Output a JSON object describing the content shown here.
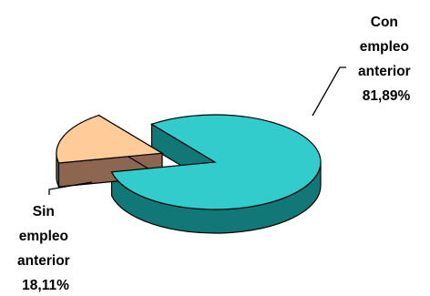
{
  "chart_data": {
    "type": "pie",
    "title": "",
    "slices": [
      {
        "label_lines": [
          "Con",
          "empleo",
          "anterior",
          "81,89%"
        ],
        "value": 81.89,
        "color": "#33CCCC",
        "side_color": "#117777",
        "exploded": false
      },
      {
        "label_lines": [
          "Sin",
          "empleo",
          "anterior",
          "18,11%"
        ],
        "value": 18.11,
        "color": "#FFCC99",
        "side_color": "#8C6650",
        "exploded": true
      }
    ],
    "legend": "none"
  }
}
